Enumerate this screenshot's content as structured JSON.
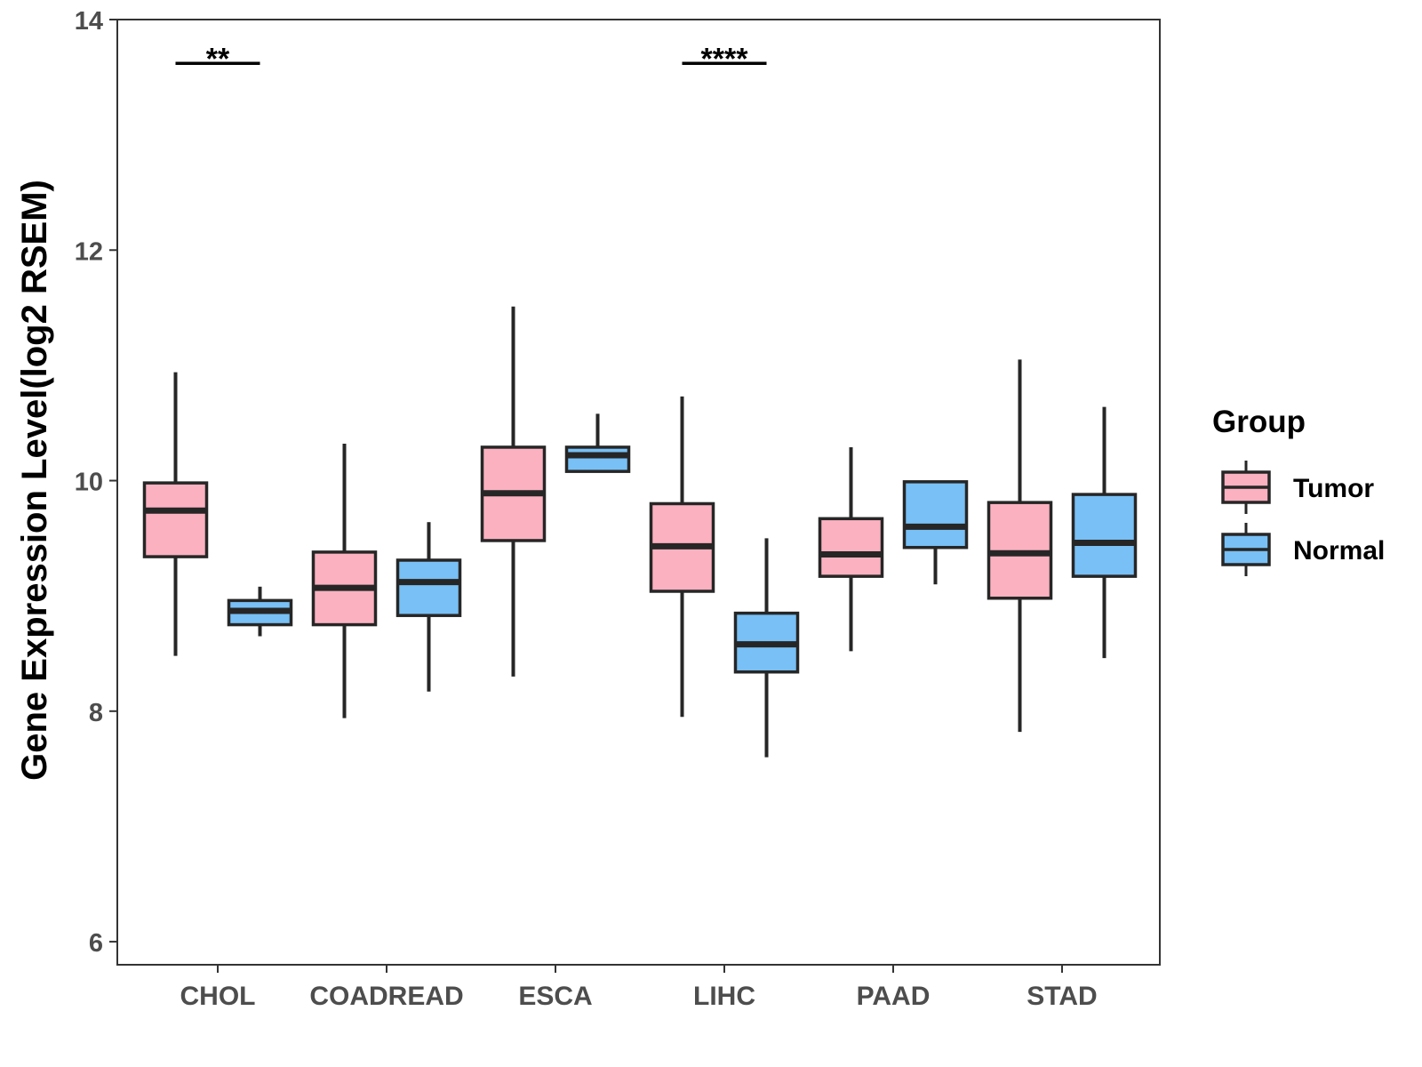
{
  "chart_data": {
    "type": "boxplot",
    "title": "",
    "xlabel": "",
    "ylabel": "Gene Expression Level(log2 RSEM)",
    "ylim": [
      5.8,
      14
    ],
    "yticks": [
      6,
      8,
      10,
      12,
      14
    ],
    "grid": false,
    "categories": [
      "CHOL",
      "COADREAD",
      "ESCA",
      "LIHC",
      "PAAD",
      "STAD"
    ],
    "legend": {
      "title": "Group",
      "position": "right",
      "entries": [
        {
          "name": "Tumor",
          "color": "#fbb1c0"
        },
        {
          "name": "Normal",
          "color": "#78c0f5"
        }
      ]
    },
    "series": [
      {
        "name": "Tumor",
        "color": "#fbb1c0",
        "boxes": [
          {
            "category": "CHOL",
            "min": 8.48,
            "q1": 9.34,
            "median": 9.74,
            "q3": 9.98,
            "max": 10.94
          },
          {
            "category": "COADREAD",
            "min": 7.94,
            "q1": 8.75,
            "median": 9.07,
            "q3": 9.38,
            "max": 10.32
          },
          {
            "category": "ESCA",
            "min": 8.3,
            "q1": 9.48,
            "median": 9.89,
            "q3": 10.29,
            "max": 11.51
          },
          {
            "category": "LIHC",
            "min": 7.95,
            "q1": 9.04,
            "median": 9.43,
            "q3": 9.8,
            "max": 10.73
          },
          {
            "category": "PAAD",
            "min": 8.52,
            "q1": 9.17,
            "median": 9.36,
            "q3": 9.67,
            "max": 10.29
          },
          {
            "category": "STAD",
            "min": 7.82,
            "q1": 8.98,
            "median": 9.37,
            "q3": 9.81,
            "max": 11.05
          }
        ]
      },
      {
        "name": "Normal",
        "color": "#78c0f5",
        "boxes": [
          {
            "category": "CHOL",
            "min": 8.65,
            "q1": 8.75,
            "median": 8.87,
            "q3": 8.96,
            "max": 9.08
          },
          {
            "category": "COADREAD",
            "min": 8.17,
            "q1": 8.83,
            "median": 9.12,
            "q3": 9.31,
            "max": 9.64
          },
          {
            "category": "ESCA",
            "min": 10.08,
            "q1": 10.08,
            "median": 10.22,
            "q3": 10.29,
            "max": 10.58
          },
          {
            "category": "LIHC",
            "min": 7.6,
            "q1": 8.34,
            "median": 8.58,
            "q3": 8.85,
            "max": 9.5
          },
          {
            "category": "PAAD",
            "min": 9.1,
            "q1": 9.42,
            "median": 9.6,
            "q3": 9.99,
            "max": 9.99
          },
          {
            "category": "STAD",
            "min": 8.46,
            "q1": 9.17,
            "median": 9.46,
            "q3": 9.88,
            "max": 10.64
          }
        ]
      }
    ],
    "annotations": [
      {
        "category": "CHOL",
        "label": "**",
        "y": 13.62
      },
      {
        "category": "LIHC",
        "label": "****",
        "y": 13.62
      }
    ]
  }
}
